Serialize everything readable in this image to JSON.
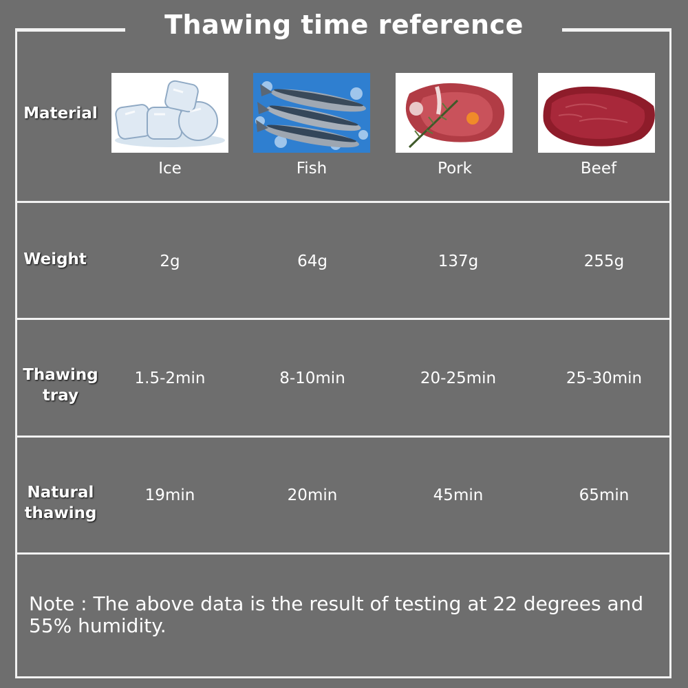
{
  "title": "Thawing time reference",
  "row_labels": {
    "material": "Material",
    "weight": "Weight",
    "thawing_tray": [
      "Thawing",
      "tray"
    ],
    "natural_thawing": [
      "Natural",
      "thawing"
    ]
  },
  "materials": [
    {
      "name": "Ice",
      "weight": "2g",
      "tray": "1.5-2min",
      "natural": "19min",
      "image": "ice-cubes-photo"
    },
    {
      "name": "Fish",
      "weight": "64g",
      "tray": "8-10min",
      "natural": "20min",
      "image": "mackerel-on-ice-photo"
    },
    {
      "name": "Pork",
      "weight": "137g",
      "tray": "20-25min",
      "natural": "45min",
      "image": "pork-chop-photo"
    },
    {
      "name": "Beef",
      "weight": "255g",
      "tray": "25-30min",
      "natural": "65min",
      "image": "beef-steak-photo"
    }
  ],
  "note": "Note : The above data is the result of testing at 22 degrees and 55% humidity.",
  "colors": {
    "background": "#6e6e6e",
    "lines": "#f2f2f2",
    "text": "#ffffff"
  }
}
